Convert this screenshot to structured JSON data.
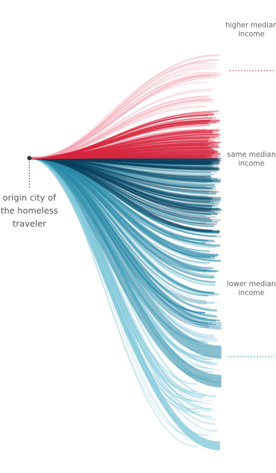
{
  "origin": {
    "line1": "origin city of",
    "line2": "the homeless",
    "line3": "traveler"
  },
  "destinations": {
    "higher": {
      "line1": "higher median",
      "line2": "income"
    },
    "same": {
      "line1": "same median",
      "line2": "income"
    },
    "lower": {
      "line1": "lower median",
      "line2": "income"
    }
  },
  "colors": {
    "higher": "#d7263d",
    "higher_light": "#f4a6b4",
    "lower_dark": "#0b3f5c",
    "lower": "#2a8aa8",
    "lower_light": "#7fc7d9",
    "origin_dot": "#333333",
    "origin_line": "#999999"
  }
}
